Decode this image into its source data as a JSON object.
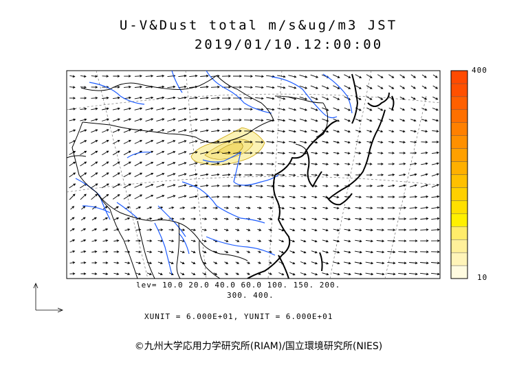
{
  "title": {
    "line1": "U-V&Dust total m/s&ug/m3 JST",
    "line2": "2019/01/10.12:00:00"
  },
  "colorbar": {
    "max_label": "400",
    "min_label": "10",
    "levels": [
      10,
      20,
      40,
      60,
      100,
      150,
      200,
      300,
      400
    ],
    "colors": [
      "#fffbe0",
      "#fff4b8",
      "#fff09a",
      "#ffec6a",
      "#fff000",
      "#ffe000",
      "#ffd000",
      "#ffc000",
      "#ffb000",
      "#ffa000",
      "#ff9000",
      "#ff8000",
      "#ff7000",
      "#ff6000",
      "#ff5000",
      "#ff4a00"
    ]
  },
  "levels_text": {
    "line1": "lev= 10.0 20.0 40.0 60.0 100. 150. 200.",
    "line2": "300. 400."
  },
  "units_text": "XUNIT = 6.000E+01, YUNIT = 6.000E+01",
  "copyright": "©九州大学応用力学研究所(RIAM)/国立環境研究所(NIES)",
  "colors": {
    "coastline": "#000000",
    "rivers": "#1a5aff",
    "dust_fill": "#fbf2b4",
    "dust_edge": "#c8a000",
    "wind_arrows": "#000000",
    "grid": "#707070"
  }
}
